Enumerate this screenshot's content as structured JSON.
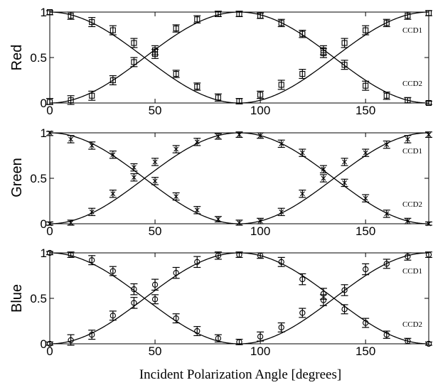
{
  "xlabel": "Incident Polarization Angle [degrees]",
  "chart_data": [
    {
      "type": "scatter",
      "ylabel": "Red",
      "marker": "square",
      "xlim": [
        0,
        180
      ],
      "ylim": [
        0,
        1
      ],
      "xticks": [
        "0",
        "50",
        "100",
        "150"
      ],
      "yticks": [
        "0",
        "0.5",
        "1"
      ],
      "x": [
        0,
        10,
        20,
        30,
        40,
        50,
        60,
        70,
        80,
        90,
        100,
        110,
        120,
        130,
        140,
        150,
        160,
        170,
        180
      ],
      "series": [
        {
          "name": "CCD1",
          "values": [
            1.0,
            0.96,
            0.89,
            0.8,
            0.66,
            0.54,
            0.32,
            0.18,
            0.06,
            0.02,
            0.09,
            0.2,
            0.32,
            0.55,
            0.42,
            0.19,
            0.08,
            0.03,
            0.0
          ],
          "errors": [
            0.03,
            0.04,
            0.05,
            0.05,
            0.05,
            0.05,
            0.04,
            0.04,
            0.04,
            0.03,
            0.04,
            0.05,
            0.05,
            0.05,
            0.05,
            0.05,
            0.04,
            0.03,
            0.02
          ]
        },
        {
          "name": "CCD2",
          "values": [
            0.01,
            0.03,
            0.08,
            0.25,
            0.45,
            0.58,
            0.82,
            0.92,
            0.98,
            0.98,
            0.96,
            0.88,
            0.76,
            0.58,
            0.66,
            0.8,
            0.88,
            0.96,
            0.99
          ],
          "errors": [
            0.04,
            0.05,
            0.05,
            0.05,
            0.05,
            0.05,
            0.04,
            0.04,
            0.03,
            0.03,
            0.03,
            0.04,
            0.04,
            0.05,
            0.05,
            0.05,
            0.04,
            0.04,
            0.03
          ]
        }
      ]
    },
    {
      "type": "scatter",
      "ylabel": "Green",
      "marker": "x",
      "xlim": [
        0,
        180
      ],
      "ylim": [
        0,
        1
      ],
      "xticks": [
        "0",
        "50",
        "100",
        "150"
      ],
      "yticks": [
        "0",
        "0.5",
        "1"
      ],
      "x": [
        0,
        10,
        20,
        30,
        40,
        50,
        60,
        70,
        80,
        90,
        100,
        110,
        120,
        130,
        140,
        150,
        160,
        170,
        180
      ],
      "series": [
        {
          "name": "CCD1",
          "values": [
            1.0,
            0.93,
            0.86,
            0.76,
            0.62,
            0.47,
            0.3,
            0.15,
            0.05,
            0.01,
            0.03,
            0.13,
            0.33,
            0.5,
            0.45,
            0.28,
            0.11,
            0.03,
            0.0
          ],
          "errors": [
            0.03,
            0.04,
            0.04,
            0.04,
            0.04,
            0.04,
            0.04,
            0.04,
            0.03,
            0.03,
            0.03,
            0.04,
            0.04,
            0.04,
            0.04,
            0.04,
            0.04,
            0.03,
            0.02
          ]
        },
        {
          "name": "CCD2",
          "values": [
            0.0,
            0.01,
            0.13,
            0.33,
            0.51,
            0.68,
            0.82,
            0.9,
            0.96,
            0.98,
            0.97,
            0.88,
            0.78,
            0.6,
            0.68,
            0.78,
            0.87,
            0.93,
            0.98
          ],
          "errors": [
            0.02,
            0.03,
            0.04,
            0.04,
            0.04,
            0.04,
            0.04,
            0.04,
            0.03,
            0.03,
            0.03,
            0.04,
            0.04,
            0.04,
            0.04,
            0.04,
            0.04,
            0.04,
            0.03
          ]
        }
      ]
    },
    {
      "type": "scatter",
      "ylabel": "Blue",
      "marker": "circle",
      "xlim": [
        0,
        180
      ],
      "ylim": [
        0,
        1
      ],
      "xticks": [
        "0",
        "50",
        "100",
        "150"
      ],
      "yticks": [
        "0",
        "0.5",
        "1"
      ],
      "x": [
        0,
        10,
        20,
        30,
        40,
        50,
        60,
        70,
        80,
        90,
        100,
        110,
        120,
        130,
        140,
        150,
        160,
        170,
        180
      ],
      "series": [
        {
          "name": "CCD1",
          "values": [
            1.0,
            0.98,
            0.92,
            0.8,
            0.6,
            0.49,
            0.28,
            0.14,
            0.06,
            0.02,
            0.08,
            0.18,
            0.34,
            0.55,
            0.38,
            0.23,
            0.1,
            0.03,
            0.0
          ],
          "errors": [
            0.02,
            0.03,
            0.05,
            0.05,
            0.06,
            0.05,
            0.05,
            0.05,
            0.04,
            0.03,
            0.05,
            0.05,
            0.05,
            0.06,
            0.05,
            0.05,
            0.04,
            0.03,
            0.02
          ]
        },
        {
          "name": "CCD2",
          "values": [
            0.0,
            0.04,
            0.1,
            0.31,
            0.45,
            0.65,
            0.78,
            0.9,
            0.97,
            0.98,
            0.97,
            0.9,
            0.71,
            0.48,
            0.59,
            0.82,
            0.88,
            0.96,
            0.98
          ],
          "errors": [
            0.02,
            0.06,
            0.05,
            0.05,
            0.06,
            0.06,
            0.06,
            0.06,
            0.04,
            0.03,
            0.03,
            0.05,
            0.06,
            0.06,
            0.06,
            0.06,
            0.05,
            0.04,
            0.03
          ]
        }
      ]
    }
  ]
}
